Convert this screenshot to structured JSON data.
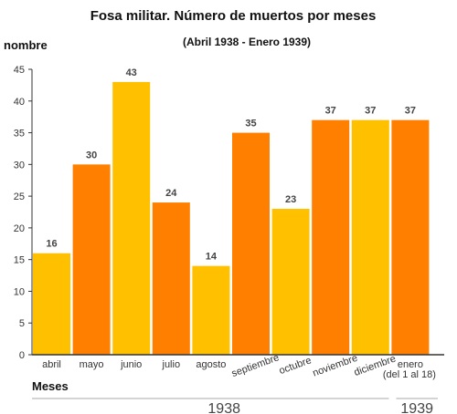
{
  "chart_data": {
    "type": "bar",
    "title": "Fosa militar. Número de muertos por meses",
    "subtitle": "(Abril 1938 - Enero 1939)",
    "ylabel": "nombre",
    "xlabel": "Meses",
    "ylim": [
      0,
      45
    ],
    "yticks": [
      0,
      5,
      10,
      15,
      20,
      25,
      30,
      35,
      40,
      45
    ],
    "grid": false,
    "categories": [
      "abril",
      "mayo",
      "junio",
      "julio",
      "agosto",
      "septiembre",
      "octubre",
      "noviembre",
      "diciembre",
      "enero"
    ],
    "category_sublabels": [
      "",
      "",
      "",
      "",
      "",
      "",
      "",
      "",
      "",
      "(del 1 al 18)"
    ],
    "values": [
      16,
      30,
      43,
      24,
      14,
      35,
      23,
      37,
      37,
      37
    ],
    "bar_colors": [
      "#FFC000",
      "#FF8000",
      "#FFC000",
      "#FF8000",
      "#FFC000",
      "#FF8000",
      "#FFC000",
      "#FF8000",
      "#FFC000",
      "#FF8000"
    ],
    "year_groups": [
      {
        "label": "1938",
        "from": 0,
        "to": 8
      },
      {
        "label": "1939",
        "from": 9,
        "to": 9
      }
    ]
  }
}
